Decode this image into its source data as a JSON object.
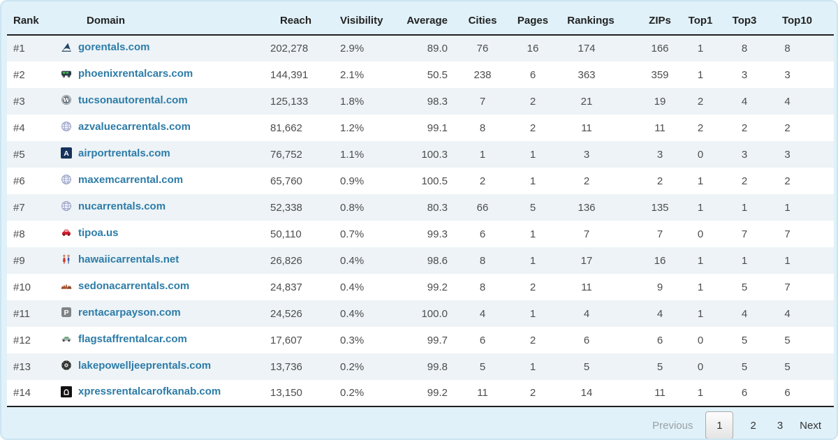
{
  "table": {
    "columns": [
      {
        "key": "rank",
        "label": "Rank"
      },
      {
        "key": "domain",
        "label": "Domain"
      },
      {
        "key": "reach",
        "label": "Reach"
      },
      {
        "key": "visibility",
        "label": "Visibility"
      },
      {
        "key": "average",
        "label": "Average"
      },
      {
        "key": "cities",
        "label": "Cities"
      },
      {
        "key": "pages",
        "label": "Pages"
      },
      {
        "key": "rankings",
        "label": "Rankings"
      },
      {
        "key": "zips",
        "label": "ZIPs"
      },
      {
        "key": "top1",
        "label": "Top1"
      },
      {
        "key": "top3",
        "label": "Top3"
      },
      {
        "key": "top10",
        "label": "Top10"
      }
    ],
    "rows": [
      {
        "rank": "#1",
        "icon": "plane-tail",
        "domain": "gorentals.com",
        "reach": "202,278",
        "visibility": "2.9%",
        "average": "89.0",
        "cities": "76",
        "pages": "16",
        "rankings": "174",
        "zips": "166",
        "top1": "1",
        "top3": "8",
        "top10": "8"
      },
      {
        "rank": "#2",
        "icon": "van",
        "domain": "phoenixrentalcars.com",
        "reach": "144,391",
        "visibility": "2.1%",
        "average": "50.5",
        "cities": "238",
        "pages": "6",
        "rankings": "363",
        "zips": "359",
        "top1": "1",
        "top3": "3",
        "top10": "3"
      },
      {
        "rank": "#3",
        "icon": "wordpress",
        "domain": "tucsonautorental.com",
        "reach": "125,133",
        "visibility": "1.8%",
        "average": "98.3",
        "cities": "7",
        "pages": "2",
        "rankings": "21",
        "zips": "19",
        "top1": "2",
        "top3": "4",
        "top10": "4"
      },
      {
        "rank": "#4",
        "icon": "globe",
        "domain": "azvaluecarrentals.com",
        "reach": "81,662",
        "visibility": "1.2%",
        "average": "99.1",
        "cities": "8",
        "pages": "2",
        "rankings": "11",
        "zips": "11",
        "top1": "2",
        "top3": "2",
        "top10": "2"
      },
      {
        "rank": "#5",
        "icon": "airport-a",
        "domain": "airportrentals.com",
        "reach": "76,752",
        "visibility": "1.1%",
        "average": "100.3",
        "cities": "1",
        "pages": "1",
        "rankings": "3",
        "zips": "3",
        "top1": "0",
        "top3": "3",
        "top10": "3"
      },
      {
        "rank": "#6",
        "icon": "globe",
        "domain": "maxemcarrental.com",
        "reach": "65,760",
        "visibility": "0.9%",
        "average": "100.5",
        "cities": "2",
        "pages": "1",
        "rankings": "2",
        "zips": "2",
        "top1": "1",
        "top3": "2",
        "top10": "2"
      },
      {
        "rank": "#7",
        "icon": "globe",
        "domain": "nucarrentals.com",
        "reach": "52,338",
        "visibility": "0.8%",
        "average": "80.3",
        "cities": "66",
        "pages": "5",
        "rankings": "136",
        "zips": "135",
        "top1": "1",
        "top3": "1",
        "top10": "1"
      },
      {
        "rank": "#8",
        "icon": "red-car",
        "domain": "tipoa.us",
        "reach": "50,110",
        "visibility": "0.7%",
        "average": "99.3",
        "cities": "6",
        "pages": "1",
        "rankings": "7",
        "zips": "7",
        "top1": "0",
        "top3": "7",
        "top10": "7"
      },
      {
        "rank": "#9",
        "icon": "people",
        "domain": "hawaiicarrentals.net",
        "reach": "26,826",
        "visibility": "0.4%",
        "average": "98.6",
        "cities": "8",
        "pages": "1",
        "rankings": "17",
        "zips": "16",
        "top1": "1",
        "top3": "1",
        "top10": "1"
      },
      {
        "rank": "#10",
        "icon": "red-rocks",
        "domain": "sedonacarrentals.com",
        "reach": "24,837",
        "visibility": "0.4%",
        "average": "99.2",
        "cities": "8",
        "pages": "2",
        "rankings": "11",
        "zips": "9",
        "top1": "1",
        "top3": "5",
        "top10": "7"
      },
      {
        "rank": "#11",
        "icon": "p-square",
        "domain": "rentacarpayson.com",
        "reach": "24,526",
        "visibility": "0.4%",
        "average": "100.0",
        "cities": "4",
        "pages": "1",
        "rankings": "4",
        "zips": "4",
        "top1": "1",
        "top3": "4",
        "top10": "4"
      },
      {
        "rank": "#12",
        "icon": "gray-car",
        "domain": "flagstaffrentalcar.com",
        "reach": "17,607",
        "visibility": "0.3%",
        "average": "99.7",
        "cities": "6",
        "pages": "2",
        "rankings": "6",
        "zips": "6",
        "top1": "0",
        "top3": "5",
        "top10": "5"
      },
      {
        "rank": "#13",
        "icon": "tire",
        "domain": "lakepowelljeeprentals.com",
        "reach": "13,736",
        "visibility": "0.2%",
        "average": "99.8",
        "cities": "5",
        "pages": "1",
        "rankings": "5",
        "zips": "5",
        "top1": "0",
        "top3": "5",
        "top10": "5"
      },
      {
        "rank": "#14",
        "icon": "arch-square",
        "domain": "xpressrentalcarofkanab.com",
        "reach": "13,150",
        "visibility": "0.2%",
        "average": "99.2",
        "cities": "11",
        "pages": "2",
        "rankings": "14",
        "zips": "11",
        "top1": "1",
        "top3": "6",
        "top10": "6"
      }
    ]
  },
  "pagination": {
    "previous_label": "Previous",
    "pages": [
      "1",
      "2",
      "3"
    ],
    "active_page": "1",
    "next_label": "Next"
  },
  "colors": {
    "panel_background": "#e0f1f9",
    "row_stripe": "#edf3f6",
    "link": "#2d7ca8",
    "header_border": "#1f1f1f",
    "muted_text": "#9aa0a3"
  }
}
